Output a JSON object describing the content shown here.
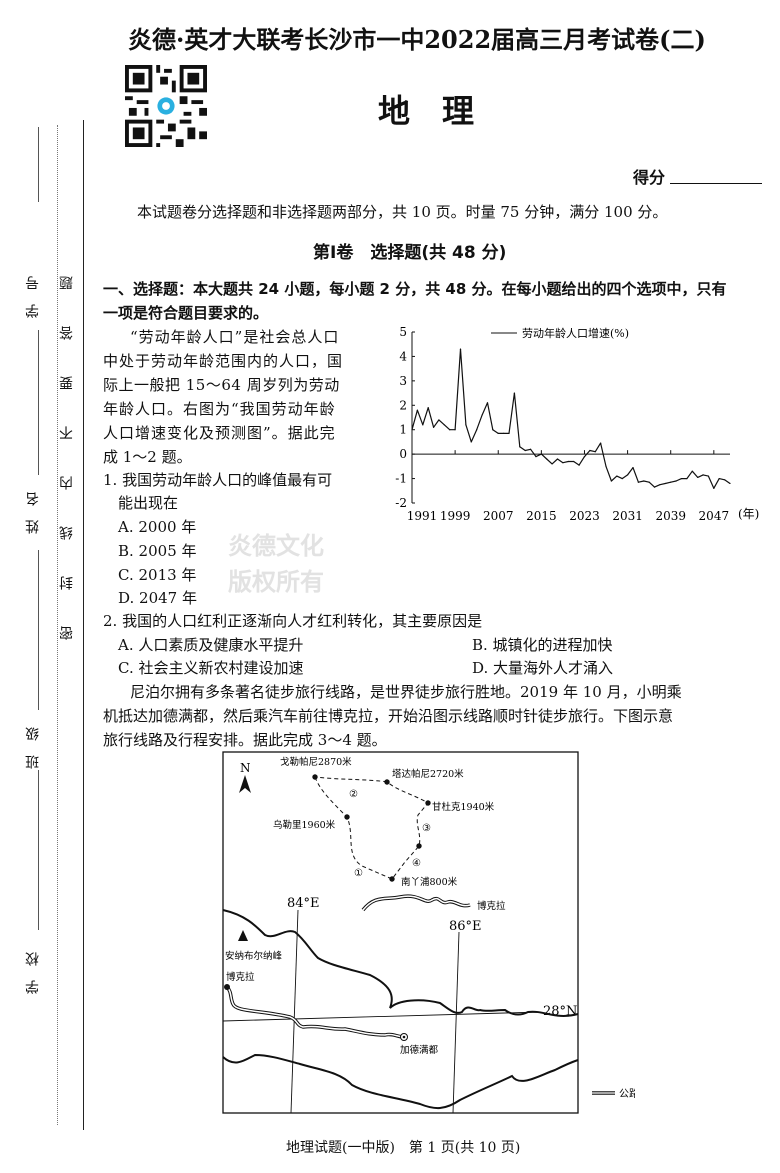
{
  "header": {
    "title": "炎德·英才大联考长沙市一中2022届高三月考试卷(二)",
    "subject": "地　理",
    "score_label": "得分",
    "qr_code": "qr-code-icon"
  },
  "margin": {
    "fields": [
      "学号",
      "姓名",
      "班级",
      "学校"
    ],
    "seal_notice": "密封线内不要答题"
  },
  "watermark": "炎德文化",
  "stamp": [
    "炎德文化",
    "版权所有"
  ],
  "intro": "本试题卷分选择题和非选择题两部分，共 10 页。时量 75 分钟，满分 100 分。",
  "part_title": "第Ⅰ卷　选择题(共 48 分)",
  "section": {
    "lines": [
      "一、选择题：本大题共 24 小题，每小题 2 分，共 48 分。在每小题给出的四个选项中，只有",
      "一项是符合题目要求的。"
    ]
  },
  "passage1": [
    "“劳动年龄人口”是社会总人口",
    "中处于劳动年龄范围内的人口，国",
    "际上一般把 15～64 周岁列为劳动",
    "年龄人口。右图为“我国劳动年龄",
    "人口增速变化及预测图”。据此完",
    "成 1～2 题。"
  ],
  "q1": {
    "stem": [
      "1. 我国劳动年龄人口的峰值最有可",
      "能出现在"
    ],
    "options": [
      "A. 2000 年",
      "B. 2005 年",
      "C. 2013 年",
      "D. 2047 年"
    ]
  },
  "q2": {
    "stem": "2. 我国的人口红利正逐渐向人才红利转化，其主要原因是",
    "options": [
      "A. 人口素质及健康水平提升",
      "B. 城镇化的进程加快",
      "C. 社会主义新农村建设加速",
      "D. 大量海外人才涌入"
    ]
  },
  "passage2": [
    "尼泊尔拥有多条著名徒步旅行线路，是世界徒步旅行胜地。2019 年 10 月，小明乘",
    "机抵达加德满都，然后乘汽车前往博克拉，开始沿图示线路顺时针徒步旅行。下图示意",
    "旅行线路及行程安排。据此完成 3～4 题。"
  ],
  "chart_data": {
    "type": "line",
    "title": "",
    "legend": "劳动年龄人口增速(%)",
    "legend_position": "top",
    "xlabel": "(年)",
    "ylabel": "",
    "xlim": [
      1991,
      2050
    ],
    "ylim": [
      -2,
      5
    ],
    "x_ticks": [
      "1991",
      "1999",
      "2007",
      "2015",
      "2023",
      "2031",
      "2039",
      "2047"
    ],
    "y_ticks": [
      "5",
      "4",
      "3",
      "2",
      "1",
      "0",
      "-1",
      "-2"
    ],
    "grid": false,
    "series": [
      {
        "name": "劳动年龄人口增速(%)",
        "x": [
          1991,
          1992,
          1993,
          1994,
          1995,
          1996,
          1997,
          1998,
          1999,
          2000,
          2001,
          2002,
          2003,
          2004,
          2005,
          2006,
          2007,
          2008,
          2009,
          2010,
          2011,
          2012,
          2013,
          2014,
          2015,
          2016,
          2017,
          2018,
          2019,
          2020,
          2021,
          2022,
          2023,
          2024,
          2025,
          2026,
          2027,
          2028,
          2029,
          2030,
          2031,
          2032,
          2033,
          2034,
          2035,
          2036,
          2037,
          2038,
          2039,
          2040,
          2041,
          2042,
          2043,
          2044,
          2045,
          2046,
          2047,
          2048,
          2049,
          2050
        ],
        "y": [
          1.0,
          1.8,
          1.2,
          1.9,
          1.1,
          1.4,
          1.2,
          1.0,
          1.0,
          4.3,
          1.2,
          0.5,
          1.0,
          1.6,
          2.1,
          1.0,
          0.85,
          0.85,
          0.85,
          2.5,
          0.3,
          0.15,
          0.2,
          -0.1,
          0.0,
          -0.2,
          -0.4,
          -0.2,
          -0.35,
          -0.3,
          -0.3,
          -0.45,
          -0.1,
          0.15,
          0.1,
          0.45,
          -0.5,
          -1.1,
          -0.9,
          -1.0,
          -0.85,
          -0.55,
          -1.15,
          -1.1,
          -1.15,
          -1.35,
          -1.25,
          -1.2,
          -1.15,
          -1.1,
          -1.0,
          -1.0,
          -0.7,
          -0.95,
          -0.85,
          -0.9,
          -1.4,
          -1.0,
          -1.05,
          -1.2
        ]
      }
    ]
  },
  "map": {
    "north": "N",
    "places": {
      "gorepani": "戈勒帕尼2870米",
      "tadapani": "塔达帕尼2720米",
      "ghandruk": "甘杜克1940米",
      "ulleri": "乌勒里1960米",
      "nayapul": "南丫浦800米",
      "pokhara_inset": "博克拉",
      "annapurna": "安纳布尔纳峰",
      "pokhara": "博克拉",
      "kathmandu": "加德满都"
    },
    "segments": [
      "①",
      "②",
      "③",
      "④"
    ],
    "grid_labels": [
      "84°E",
      "86°E",
      "28°N"
    ],
    "legend_road": "公路"
  },
  "footer": "地理试题(一中版)　第 1 页(共 10 页)"
}
